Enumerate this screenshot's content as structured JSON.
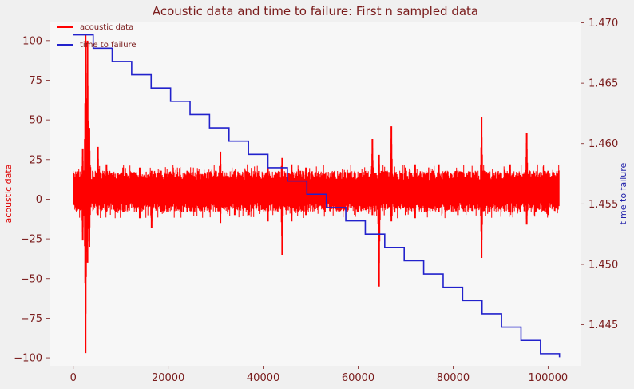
{
  "chart_data": {
    "type": "line",
    "title": "Acoustic data and time to failure: First n sampled data",
    "xlabel": "",
    "ylabel_left": "acoustic data",
    "ylabel_right": "time to failure",
    "xlim": [
      -5000,
      107000
    ],
    "ylim_left": [
      -105,
      112
    ],
    "ylim_right": [
      1.4416,
      1.4701
    ],
    "x_ticks": [
      0,
      20000,
      40000,
      60000,
      80000,
      100000
    ],
    "x_tick_labels": [
      "0",
      "20000",
      "40000",
      "60000",
      "80000",
      "100000"
    ],
    "y_left_ticks": [
      100,
      75,
      50,
      25,
      0,
      -25,
      -50,
      -75,
      -100
    ],
    "y_left_tick_labels": [
      "100",
      "75",
      "50",
      "25",
      "0",
      "−25",
      "−50",
      "−75",
      "−100"
    ],
    "y_right_ticks": [
      1.47,
      1.465,
      1.46,
      1.455,
      1.45,
      1.445
    ],
    "y_right_tick_labels": [
      "1.470",
      "1.465",
      "1.460",
      "1.455",
      "1.450",
      "1.445"
    ],
    "grid": false,
    "legend_position": "top-left",
    "background_color": "#f7f7f7",
    "text_color": "#7a1c1c",
    "series": [
      {
        "name": "acoustic data",
        "axis": "left",
        "color": "#ff0000",
        "x_range": [
          0,
          102400
        ],
        "baseline": 4.5,
        "band_low": -5,
        "band_high": 15,
        "spikes": [
          {
            "x": 2000,
            "min": -26,
            "max": 32
          },
          {
            "x": 2600,
            "min": -97,
            "max": 104
          },
          {
            "x": 3000,
            "min": -40,
            "max": 100
          },
          {
            "x": 3400,
            "min": -30,
            "max": 45
          },
          {
            "x": 5200,
            "min": -10,
            "max": 33
          },
          {
            "x": 7000,
            "min": -8,
            "max": 22
          },
          {
            "x": 10500,
            "min": -8,
            "max": 20
          },
          {
            "x": 14000,
            "min": -12,
            "max": 20
          },
          {
            "x": 16500,
            "min": -18,
            "max": 18
          },
          {
            "x": 18500,
            "min": -8,
            "max": 18
          },
          {
            "x": 20000,
            "min": -8,
            "max": 16
          },
          {
            "x": 24000,
            "min": -8,
            "max": 18
          },
          {
            "x": 30000,
            "min": -8,
            "max": 18
          },
          {
            "x": 31000,
            "min": -15,
            "max": 30
          },
          {
            "x": 34000,
            "min": -10,
            "max": 18
          },
          {
            "x": 37000,
            "min": -10,
            "max": 16
          },
          {
            "x": 41000,
            "min": -14,
            "max": 20
          },
          {
            "x": 44000,
            "min": -35,
            "max": 26
          },
          {
            "x": 46000,
            "min": -14,
            "max": 22
          },
          {
            "x": 49000,
            "min": -10,
            "max": 20
          },
          {
            "x": 53000,
            "min": -8,
            "max": 16
          },
          {
            "x": 56000,
            "min": -8,
            "max": 16
          },
          {
            "x": 60000,
            "min": -8,
            "max": 14
          },
          {
            "x": 63000,
            "min": -10,
            "max": 38
          },
          {
            "x": 64400,
            "min": -55,
            "max": 28
          },
          {
            "x": 67000,
            "min": -14,
            "max": 46
          },
          {
            "x": 70000,
            "min": -10,
            "max": 20
          },
          {
            "x": 72000,
            "min": -12,
            "max": 22
          },
          {
            "x": 74000,
            "min": -8,
            "max": 16
          },
          {
            "x": 77000,
            "min": -8,
            "max": 22
          },
          {
            "x": 81000,
            "min": -10,
            "max": 18
          },
          {
            "x": 86000,
            "min": -37,
            "max": 52
          },
          {
            "x": 92000,
            "min": -8,
            "max": 22
          },
          {
            "x": 95500,
            "min": -16,
            "max": 42
          },
          {
            "x": 100000,
            "min": -10,
            "max": 18
          }
        ]
      },
      {
        "name": "time to failure",
        "axis": "right",
        "color": "#2222cc",
        "steps": [
          {
            "x0": 0,
            "x1": 4200,
            "y": 1.469
          },
          {
            "x0": 4200,
            "x1": 8200,
            "y": 1.4679
          },
          {
            "x0": 8200,
            "x1": 12300,
            "y": 1.4668
          },
          {
            "x0": 12300,
            "x1": 16400,
            "y": 1.4657
          },
          {
            "x0": 16400,
            "x1": 20500,
            "y": 1.4646
          },
          {
            "x0": 20500,
            "x1": 24600,
            "y": 1.4635
          },
          {
            "x0": 24600,
            "x1": 28700,
            "y": 1.4624
          },
          {
            "x0": 28700,
            "x1": 32800,
            "y": 1.4613
          },
          {
            "x0": 32800,
            "x1": 36900,
            "y": 1.4602
          },
          {
            "x0": 36900,
            "x1": 41000,
            "y": 1.4591
          },
          {
            "x0": 41000,
            "x1": 45100,
            "y": 1.458
          },
          {
            "x0": 45100,
            "x1": 49200,
            "y": 1.4569
          },
          {
            "x0": 49200,
            "x1": 53300,
            "y": 1.4558
          },
          {
            "x0": 53300,
            "x1": 57400,
            "y": 1.4547
          },
          {
            "x0": 57400,
            "x1": 61500,
            "y": 1.4536
          },
          {
            "x0": 61500,
            "x1": 65600,
            "y": 1.4525
          },
          {
            "x0": 65600,
            "x1": 69700,
            "y": 1.4514
          },
          {
            "x0": 69700,
            "x1": 73800,
            "y": 1.4503
          },
          {
            "x0": 73800,
            "x1": 77900,
            "y": 1.4492
          },
          {
            "x0": 77900,
            "x1": 82000,
            "y": 1.4481
          },
          {
            "x0": 82000,
            "x1": 86100,
            "y": 1.447
          },
          {
            "x0": 86100,
            "x1": 90200,
            "y": 1.4459
          },
          {
            "x0": 90200,
            "x1": 94300,
            "y": 1.4448
          },
          {
            "x0": 94300,
            "x1": 98400,
            "y": 1.4437
          },
          {
            "x0": 98400,
            "x1": 102400,
            "y": 1.4426
          },
          {
            "x0": 102400,
            "x1": 102400,
            "y": 1.4423
          }
        ]
      }
    ]
  }
}
